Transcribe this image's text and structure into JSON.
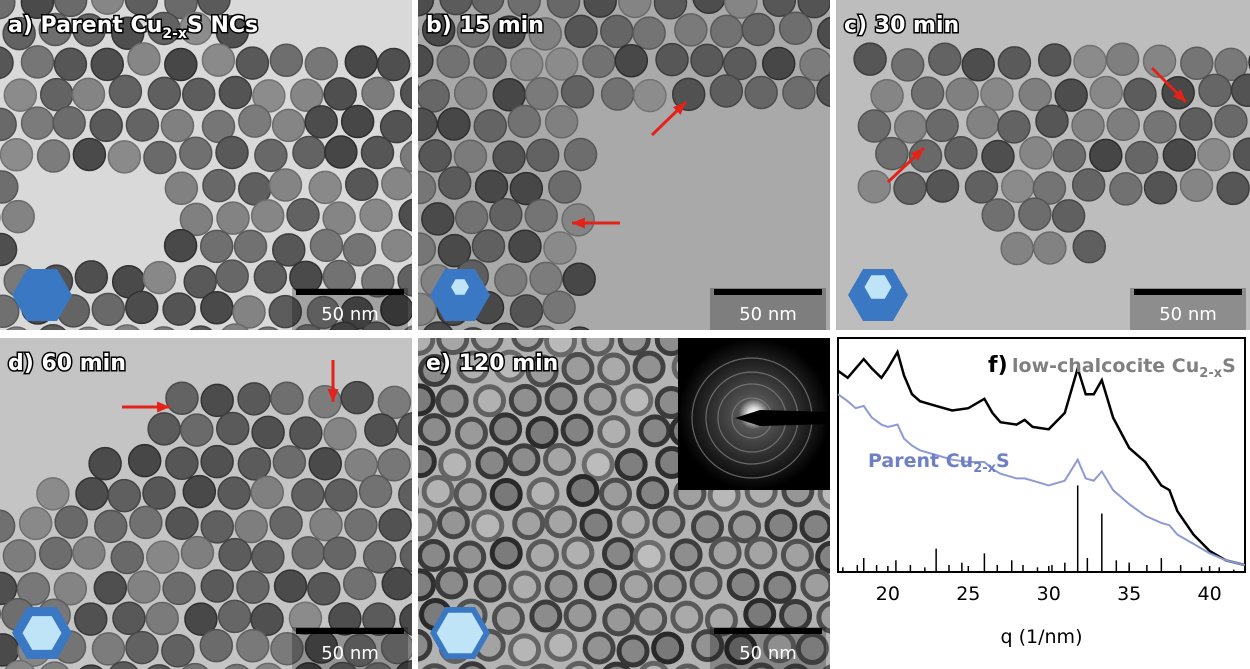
{
  "panels": [
    {
      "label": "a) Parent Cu",
      "label_sub": "2-x",
      "label_end": "S NCs",
      "scale_bar": "50 nm"
    },
    {
      "label": "b) 15 min",
      "scale_bar": "50 nm"
    },
    {
      "label": "c) 30 min",
      "scale_bar": "50 nm"
    },
    {
      "label": "d) 60 min",
      "scale_bar": "50 nm"
    },
    {
      "label": "e) 120 min",
      "scale_bar": "50 nm"
    }
  ],
  "chart_data": {
    "type": "line",
    "label": "f)",
    "xlabel": "q (1/nm)",
    "x": [
      16.9,
      17.5,
      18,
      18.5,
      19,
      19.6,
      20,
      20.6,
      21,
      21.5,
      22,
      23,
      24,
      25,
      26,
      26.5,
      27,
      28,
      28.5,
      29,
      30,
      31,
      31.8,
      32.3,
      32.8,
      33.3,
      34,
      35,
      36,
      37,
      37.5,
      38,
      39,
      40,
      41,
      42.2
    ],
    "xlim": [
      16.9,
      42.2
    ],
    "xticks": [
      20,
      25,
      30,
      35,
      40
    ],
    "ylim": [
      0,
      100
    ],
    "series": [
      {
        "name": "low-chalcocite Cu",
        "name_sub": "2-x",
        "name_end": "S",
        "color": "#000000",
        "values": [
          86,
          83,
          87,
          91,
          87,
          83,
          87,
          94,
          84,
          76,
          73,
          71,
          69,
          70,
          74,
          68,
          64,
          63,
          65,
          62,
          61,
          68,
          87,
          76,
          76,
          82,
          66,
          53,
          47,
          37,
          35,
          26,
          16,
          9,
          5,
          3
        ]
      },
      {
        "name": "Parent Cu",
        "name_sub": "2-x",
        "name_end": "S",
        "color": "#8e9ad4",
        "values": [
          76,
          73,
          70,
          71,
          66,
          63,
          62,
          63,
          57,
          54,
          52,
          50,
          48,
          47,
          47,
          44,
          42,
          40,
          40,
          39,
          37,
          39,
          48,
          40,
          39,
          43,
          35,
          29,
          24,
          21,
          20,
          16,
          12,
          8,
          5,
          3
        ]
      }
    ],
    "reference": {
      "color": "#000000",
      "x": [
        17.2,
        18.1,
        18.5,
        19.3,
        20.5,
        21.4,
        22.3,
        23,
        23.8,
        24.6,
        26,
        26.8,
        27.7,
        28.4,
        29.3,
        30.2,
        31,
        31.8,
        32.4,
        33.3,
        34.2,
        35,
        36.1,
        37,
        38.2,
        39.5,
        40.6,
        41.5
      ],
      "values": [
        2,
        3,
        6,
        3,
        5,
        3,
        2,
        10,
        3,
        4,
        8,
        3,
        5,
        3,
        2,
        3,
        4,
        37,
        6,
        25,
        5,
        4,
        3,
        6,
        3,
        2,
        2,
        1
      ]
    }
  }
}
